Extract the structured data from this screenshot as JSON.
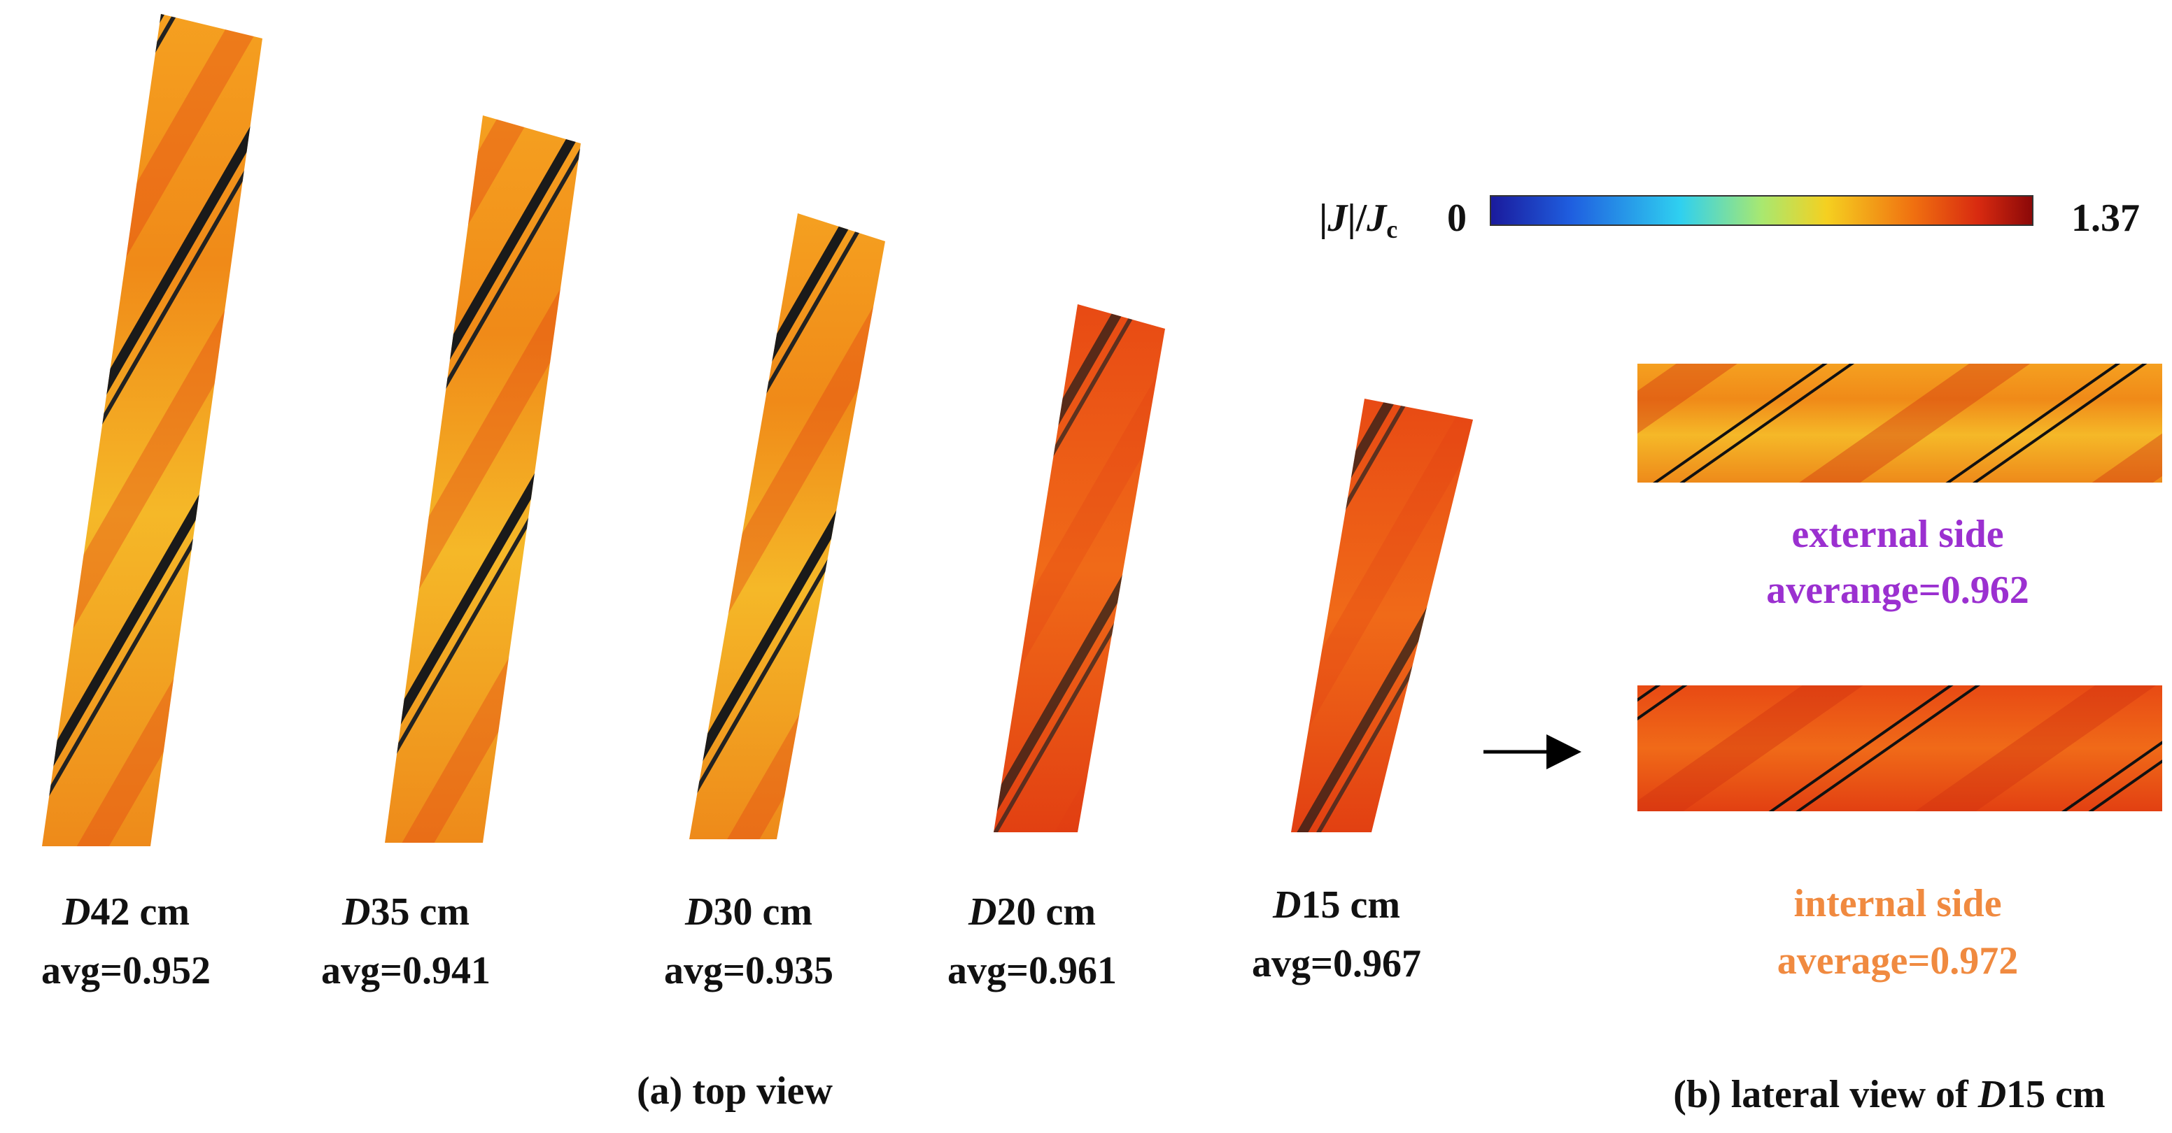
{
  "colorbar": {
    "label_parts": [
      "|",
      "J",
      "|/",
      "J",
      "c"
    ],
    "min": 0,
    "max": 1.37
  },
  "cables": [
    {
      "name_italic": "D",
      "name_rest": "42 cm",
      "avg": "avg=0.952"
    },
    {
      "name_italic": "D",
      "name_rest": "35 cm",
      "avg": "avg=0.941"
    },
    {
      "name_italic": "D",
      "name_rest": "30 cm",
      "avg": "avg=0.935"
    },
    {
      "name_italic": "D",
      "name_rest": "20 cm",
      "avg": "avg=0.961"
    },
    {
      "name_italic": "D",
      "name_rest": "15 cm",
      "avg": "avg=0.967"
    }
  ],
  "lateral": {
    "external": {
      "label": "external side",
      "avg": "averange=0.962"
    },
    "internal": {
      "label": "internal side",
      "avg": "average=0.972"
    }
  },
  "captions": {
    "a": "(a) top view",
    "b_pre": "(b) lateral view of ",
    "b_italic": "D",
    "b_post": "15 cm"
  }
}
